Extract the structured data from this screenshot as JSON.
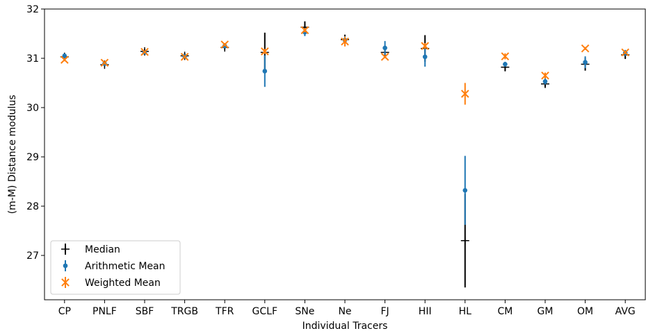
{
  "chart_data": {
    "type": "scatter",
    "xlabel": "Individual Tracers",
    "ylabel": "(m-M) Distance modulus",
    "ylim": [
      26.1,
      32.0
    ],
    "yticks": [
      27,
      28,
      29,
      30,
      31,
      32
    ],
    "categories": [
      "CP",
      "PNLF",
      "SBF",
      "TRGB",
      "TFR",
      "GCLF",
      "SNe",
      "Ne",
      "FJ",
      "HII",
      "HL",
      "CM",
      "GM",
      "OM",
      "AVG"
    ],
    "legend_position": "lower-left",
    "series": [
      {
        "name": "Median",
        "marker": "plus",
        "color": "#000000",
        "values": [
          31.03,
          30.87,
          31.14,
          31.05,
          31.22,
          31.12,
          31.63,
          31.38,
          31.12,
          31.2,
          27.3,
          30.82,
          30.48,
          30.88,
          31.07
        ],
        "err": [
          0.02,
          0.03,
          0.04,
          0.05,
          0.04,
          0.4,
          0.12,
          0.1,
          0.05,
          0.27,
          0.95,
          0.08,
          0.06,
          0.13,
          0.08
        ]
      },
      {
        "name": "Arithmetic Mean",
        "marker": "dot",
        "color": "#1f77b4",
        "values": [
          31.05,
          30.89,
          31.12,
          31.04,
          31.25,
          30.74,
          31.53,
          31.37,
          31.21,
          31.03,
          28.32,
          30.88,
          30.53,
          30.92,
          31.11
        ],
        "err": [
          0.05,
          0.03,
          0.04,
          0.04,
          0.05,
          0.32,
          0.08,
          0.08,
          0.14,
          0.2,
          0.7,
          0.05,
          0.06,
          0.12,
          0.06
        ]
      },
      {
        "name": "Weighted Mean",
        "marker": "x",
        "color": "#ff7f0e",
        "values": [
          30.97,
          30.91,
          31.13,
          31.03,
          31.28,
          31.14,
          31.57,
          31.34,
          31.03,
          31.25,
          30.28,
          31.04,
          30.65,
          31.2,
          31.12
        ],
        "err": [
          0.03,
          0.03,
          0.02,
          0.02,
          0.03,
          0.05,
          0.04,
          0.1,
          0.03,
          0.06,
          0.22,
          0.06,
          0.06,
          0.03,
          0.03
        ]
      }
    ]
  }
}
